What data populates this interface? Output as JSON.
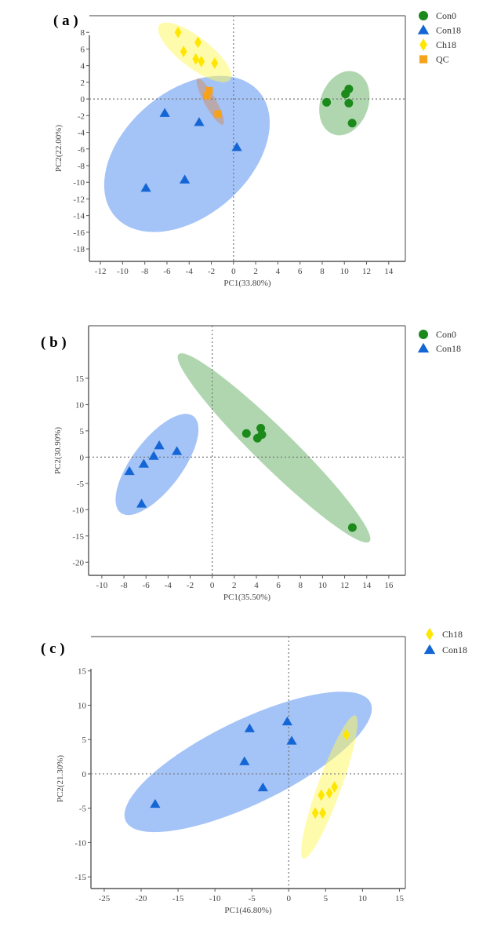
{
  "colors": {
    "Con0": "#1b8a1b",
    "Con18": "#1466d6",
    "Ch18": "#ffe600",
    "QC": "#f7a21b"
  },
  "ellipse_fills": {
    "Con0": "rgba(80,165,80,0.45)",
    "Con18": "rgba(90,145,240,0.55)",
    "Ch18": "rgba(255,248,90,0.5)",
    "QC": "rgba(220,130,60,0.4)"
  },
  "markers": {
    "Con0": "circle",
    "Con18": "triangle",
    "Ch18": "diamond",
    "QC": "square"
  },
  "chart_data": [
    {
      "type": "scatter",
      "panel_label": "( a )",
      "xlabel": "PC1(33.80%)",
      "ylabel": "PC2(22.00%)",
      "xlim": [
        -13,
        15.5
      ],
      "ylim": [
        -19.5,
        10
      ],
      "xticks": [
        -12,
        -10,
        -8,
        -6,
        -4,
        -2,
        0,
        2,
        4,
        6,
        8,
        10,
        12,
        14
      ],
      "yticks": [
        8,
        6,
        4,
        2,
        0,
        -2,
        -4,
        -6,
        -8,
        -10,
        -12,
        -14,
        -16,
        -18
      ],
      "legend": [
        "Con0",
        "Con18",
        "Ch18",
        "QC"
      ],
      "legend_position": "right",
      "reference_lines": {
        "x": 0,
        "y": 0
      },
      "series": [
        {
          "name": "Con0",
          "points": [
            [
              8.4,
              -0.4
            ],
            [
              10.1,
              0.6
            ],
            [
              10.4,
              1.2
            ],
            [
              10.4,
              -0.5
            ],
            [
              10.7,
              -2.9
            ]
          ],
          "ellipse": {
            "center": [
              10,
              -0.5
            ],
            "a": 3.9,
            "b": 2.2,
            "angle": 80
          }
        },
        {
          "name": "Con18",
          "points": [
            [
              -6.2,
              -1.7
            ],
            [
              -3.1,
              -2.8
            ],
            [
              0.3,
              -5.8
            ],
            [
              -4.4,
              -9.7
            ],
            [
              -7.9,
              -10.7
            ]
          ],
          "ellipse": {
            "center": [
              -4.2,
              -6.6
            ],
            "a": 10.2,
            "b": 6.3,
            "angle": 60
          }
        },
        {
          "name": "Ch18",
          "points": [
            [
              -5.0,
              8.0
            ],
            [
              -4.5,
              5.7
            ],
            [
              -3.2,
              6.8
            ],
            [
              -3.4,
              4.8
            ],
            [
              -2.9,
              4.5
            ],
            [
              -1.7,
              4.3
            ]
          ],
          "ellipse": {
            "center": [
              -3.5,
              5.6
            ],
            "a": 4.6,
            "b": 1.6,
            "angle": -48
          }
        },
        {
          "name": "QC",
          "points": [
            [
              -2.4,
              0.4
            ],
            [
              -2.2,
              1.0
            ],
            [
              -1.4,
              -1.8
            ]
          ],
          "ellipse": {
            "center": [
              -2.1,
              -0.3
            ],
            "a": 3.0,
            "b": 0.55,
            "angle": -68
          }
        }
      ]
    },
    {
      "type": "scatter",
      "panel_label": "( b )",
      "xlabel": "PC1(35.50%)",
      "ylabel": "PC2(30.90%)",
      "xlim": [
        -11.2,
        17.5
      ],
      "ylim": [
        -22.5,
        25
      ],
      "xticks": [
        -10,
        -8,
        -6,
        -4,
        -2,
        0,
        2,
        4,
        6,
        8,
        10,
        12,
        14,
        16
      ],
      "yticks": [
        15,
        10,
        5,
        0,
        -5,
        -10,
        -15,
        -20
      ],
      "legend": [
        "Con0",
        "Con18"
      ],
      "legend_position": "right",
      "reference_lines": {
        "x": 0,
        "y": 0
      },
      "series": [
        {
          "name": "Con0",
          "points": [
            [
              3.1,
              4.5
            ],
            [
              4.4,
              5.5
            ],
            [
              4.1,
              3.6
            ],
            [
              4.5,
              4.3
            ],
            [
              12.7,
              -13.4
            ]
          ],
          "ellipse": {
            "center": [
              5.6,
              1.75
            ],
            "a": 19.9,
            "b": 2.2,
            "angle": -64.7
          }
        },
        {
          "name": "Con18",
          "points": [
            [
              -7.5,
              -2.7
            ],
            [
              -6.2,
              -1.3
            ],
            [
              -5.3,
              0.2
            ],
            [
              -4.8,
              2.2
            ],
            [
              -3.2,
              1.1
            ],
            [
              -6.4,
              -8.9
            ]
          ],
          "ellipse": {
            "center": [
              -5.0,
              -1.4
            ],
            "a": 10.0,
            "b": 2.6,
            "angle": 73.7
          }
        }
      ]
    },
    {
      "type": "scatter",
      "panel_label": "( c )",
      "xlabel": "PC1(46.80%)",
      "ylabel": "PC2(21.30%)",
      "xlim": [
        -26.8,
        15.8
      ],
      "ylim": [
        -16.7,
        20
      ],
      "xticks": [
        -25,
        -20,
        -15,
        -10,
        -5,
        0,
        5,
        10,
        15
      ],
      "yticks": [
        15,
        10,
        5,
        0,
        -5,
        -10,
        -15
      ],
      "legend": [
        "Ch18",
        "Con18"
      ],
      "legend_position": "right",
      "reference_lines": {
        "x": 0,
        "y": 0
      },
      "series": [
        {
          "name": "Con18",
          "points": [
            [
              -18.1,
              -4.4
            ],
            [
              -5.3,
              6.6
            ],
            [
              -6.0,
              1.8
            ],
            [
              -3.5,
              -2.0
            ],
            [
              -0.2,
              7.6
            ],
            [
              0.4,
              4.8
            ]
          ],
          "ellipse": {
            "center": [
              -5.5,
              1.75
            ],
            "a": 18.7,
            "b": 6.0,
            "angle": 27.9
          }
        },
        {
          "name": "Ch18",
          "points": [
            [
              7.8,
              5.7
            ],
            [
              4.4,
              -3.1
            ],
            [
              5.5,
              -2.8
            ],
            [
              6.2,
              -1.9
            ],
            [
              3.6,
              -5.7
            ],
            [
              4.6,
              -5.7
            ]
          ],
          "ellipse": {
            "center": [
              5.5,
              -1.9
            ],
            "a": 11.0,
            "b": 1.6,
            "angle": 71.4
          }
        }
      ]
    }
  ]
}
